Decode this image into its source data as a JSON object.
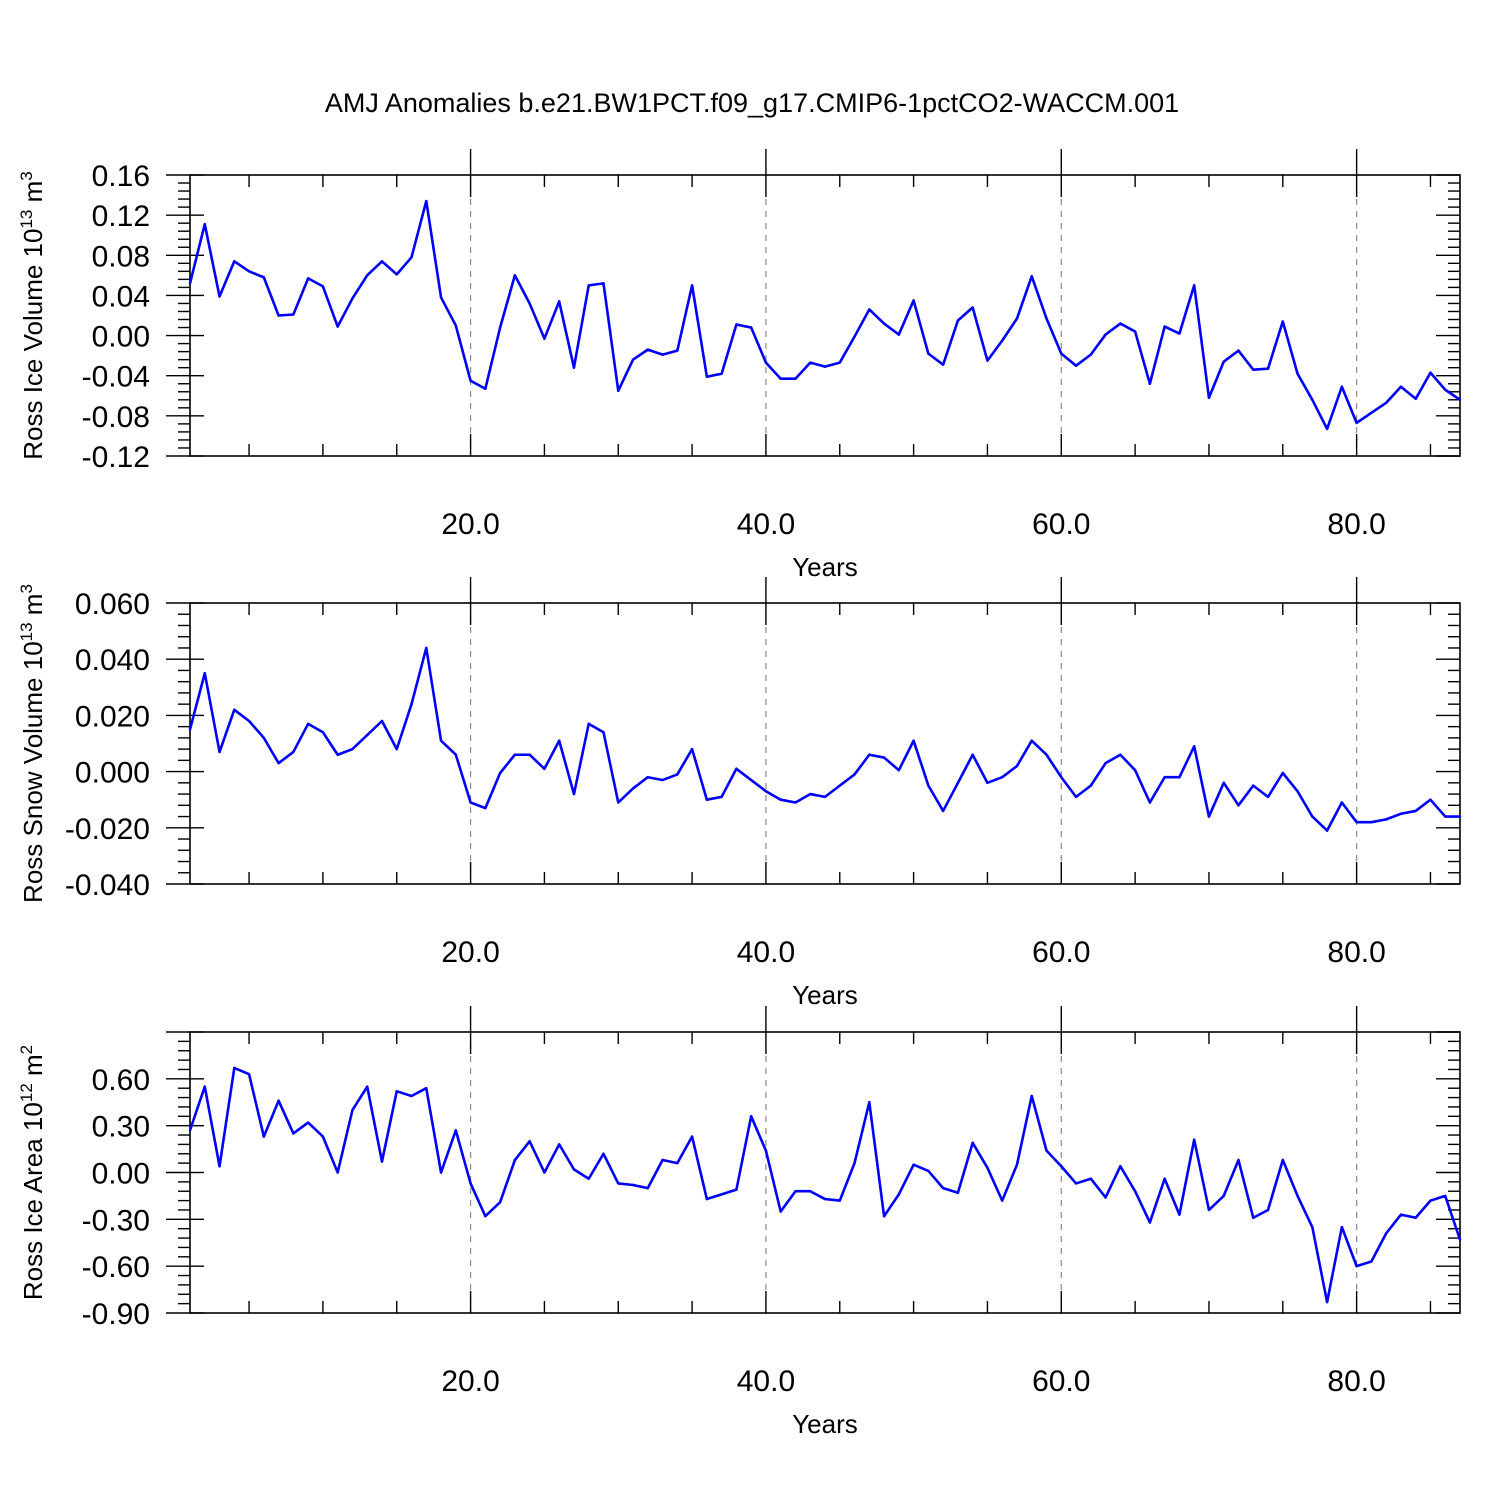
{
  "title": "AMJ Anomalies b.e21.BW1PCT.f09_g17.CMIP6-1pctCO2-WACCM.001",
  "line_color": "#0000ff",
  "chart_data": [
    {
      "type": "line",
      "ylabel": "Ross Ice Volume 10",
      "ylabel_exp": "13",
      "ylabel_unit": " m",
      "ylabel_unit_exp": "3",
      "xlabel": "Years",
      "xlim": [
        1,
        87
      ],
      "ylim": [
        -0.12,
        0.16
      ],
      "yticks": [
        -0.12,
        -0.08,
        -0.04,
        0.0,
        0.04,
        0.08,
        0.12,
        0.16
      ],
      "ytick_labels": [
        "-0.12",
        "-0.08",
        "-0.04",
        "0.00",
        "0.04",
        "0.08",
        "0.12",
        "0.16"
      ],
      "xticks": [
        20,
        40,
        60,
        80
      ],
      "xtick_labels": [
        "20.0",
        "40.0",
        "60.0",
        "80.0"
      ],
      "grid_x": true,
      "series": [
        {
          "x": [
            1,
            2,
            3,
            4,
            5,
            6,
            7,
            8,
            9,
            10,
            11,
            12,
            13,
            14,
            15,
            16,
            17,
            18,
            19,
            20,
            21,
            22,
            23,
            24,
            25,
            26,
            27,
            28,
            29,
            30,
            31,
            32,
            33,
            34,
            35,
            36,
            37,
            38,
            39,
            40,
            41,
            42,
            43,
            44,
            45,
            46,
            47,
            48,
            49,
            50,
            51,
            52,
            53,
            54,
            55,
            56,
            57,
            58,
            59,
            60,
            61,
            62,
            63,
            64,
            65,
            66,
            67,
            68,
            69,
            70,
            71,
            72,
            73,
            74,
            75,
            76,
            77,
            78,
            79,
            80,
            81,
            82,
            83,
            84,
            85,
            86,
            87
          ],
          "values": [
            0.052,
            0.111,
            0.039,
            0.074,
            0.064,
            0.058,
            0.02,
            0.021,
            0.057,
            0.049,
            0.009,
            0.037,
            0.06,
            0.074,
            0.061,
            0.078,
            0.134,
            0.038,
            0.01,
            -0.045,
            -0.053,
            0.008,
            0.06,
            0.032,
            -0.003,
            0.034,
            -0.032,
            0.05,
            0.052,
            -0.055,
            -0.024,
            -0.014,
            -0.019,
            -0.015,
            0.05,
            -0.041,
            -0.038,
            0.011,
            0.008,
            -0.027,
            -0.043,
            -0.043,
            -0.027,
            -0.031,
            -0.027,
            -0.001,
            0.026,
            0.012,
            0.001,
            0.035,
            -0.018,
            -0.029,
            0.015,
            0.028,
            -0.025,
            -0.005,
            0.017,
            0.059,
            0.017,
            -0.018,
            -0.03,
            -0.019,
            0.001,
            0.012,
            0.004,
            -0.048,
            0.009,
            0.002,
            0.05,
            -0.062,
            -0.026,
            -0.015,
            -0.034,
            -0.033,
            0.014,
            -0.038,
            -0.064,
            -0.093,
            -0.051,
            -0.087,
            -0.077,
            -0.067,
            -0.051,
            -0.063,
            -0.037,
            -0.054,
            -0.064
          ]
        }
      ]
    },
    {
      "type": "line",
      "ylabel": "Ross Snow Volume 10",
      "ylabel_exp": "13",
      "ylabel_unit": " m",
      "ylabel_unit_exp": "3",
      "xlabel": "Years",
      "xlim": [
        1,
        87
      ],
      "ylim": [
        -0.04,
        0.06
      ],
      "yticks": [
        -0.04,
        -0.02,
        0.0,
        0.02,
        0.04,
        0.06
      ],
      "ytick_labels": [
        "-0.040",
        "-0.020",
        "0.000",
        "0.020",
        "0.040",
        "0.060"
      ],
      "xticks": [
        20,
        40,
        60,
        80
      ],
      "xtick_labels": [
        "20.0",
        "40.0",
        "60.0",
        "80.0"
      ],
      "grid_x": true,
      "series": [
        {
          "x": [
            1,
            2,
            3,
            4,
            5,
            6,
            7,
            8,
            9,
            10,
            11,
            12,
            13,
            14,
            15,
            16,
            17,
            18,
            19,
            20,
            21,
            22,
            23,
            24,
            25,
            26,
            27,
            28,
            29,
            30,
            31,
            32,
            33,
            34,
            35,
            36,
            37,
            38,
            39,
            40,
            41,
            42,
            43,
            44,
            45,
            46,
            47,
            48,
            49,
            50,
            51,
            52,
            53,
            54,
            55,
            56,
            57,
            58,
            59,
            60,
            61,
            62,
            63,
            64,
            65,
            66,
            67,
            68,
            69,
            70,
            71,
            72,
            73,
            74,
            75,
            76,
            77,
            78,
            79,
            80,
            81,
            82,
            83,
            84,
            85,
            86,
            87
          ],
          "values": [
            0.015,
            0.035,
            0.007,
            0.022,
            0.018,
            0.012,
            0.003,
            0.007,
            0.017,
            0.014,
            0.006,
            0.008,
            0.013,
            0.018,
            0.008,
            0.024,
            0.044,
            0.011,
            0.006,
            -0.011,
            -0.013,
            -0.0005,
            0.006,
            0.006,
            0.001,
            0.011,
            -0.008,
            0.017,
            0.014,
            -0.011,
            -0.006,
            -0.002,
            -0.003,
            -0.001,
            0.008,
            -0.01,
            -0.009,
            0.001,
            -0.003,
            -0.007,
            -0.01,
            -0.011,
            -0.008,
            -0.009,
            -0.005,
            -0.001,
            0.006,
            0.005,
            0.0005,
            0.011,
            -0.005,
            -0.014,
            -0.004,
            0.006,
            -0.004,
            -0.002,
            0.002,
            0.011,
            0.006,
            -0.002,
            -0.009,
            -0.005,
            0.003,
            0.006,
            0.0005,
            -0.011,
            -0.002,
            -0.002,
            0.009,
            -0.016,
            -0.004,
            -0.012,
            -0.005,
            -0.009,
            -0.0005,
            -0.007,
            -0.016,
            -0.021,
            -0.011,
            -0.018,
            -0.018,
            -0.017,
            -0.015,
            -0.014,
            -0.01,
            -0.016,
            -0.016
          ]
        }
      ]
    },
    {
      "type": "line",
      "ylabel": "Ross Ice Area 10",
      "ylabel_exp": "12",
      "ylabel_unit": " m",
      "ylabel_unit_exp": "2",
      "xlabel": "Years",
      "xlim": [
        1,
        87
      ],
      "ylim": [
        -0.9,
        0.9
      ],
      "yticks": [
        -0.9,
        -0.6,
        -0.3,
        0.0,
        0.3,
        0.6
      ],
      "ytick_labels": [
        "-0.90",
        "-0.60",
        "-0.30",
        "0.00",
        "0.30",
        "0.60"
      ],
      "xticks": [
        20,
        40,
        60,
        80
      ],
      "xtick_labels": [
        "20.0",
        "40.0",
        "60.0",
        "80.0"
      ],
      "grid_x": true,
      "series": [
        {
          "x": [
            1,
            2,
            3,
            4,
            5,
            6,
            7,
            8,
            9,
            10,
            11,
            12,
            13,
            14,
            15,
            16,
            17,
            18,
            19,
            20,
            21,
            22,
            23,
            24,
            25,
            26,
            27,
            28,
            29,
            30,
            31,
            32,
            33,
            34,
            35,
            36,
            37,
            38,
            39,
            40,
            41,
            42,
            43,
            44,
            45,
            46,
            47,
            48,
            49,
            50,
            51,
            52,
            53,
            54,
            55,
            56,
            57,
            58,
            59,
            60,
            61,
            62,
            63,
            64,
            65,
            66,
            67,
            68,
            69,
            70,
            71,
            72,
            73,
            74,
            75,
            76,
            77,
            78,
            79,
            80,
            81,
            82,
            83,
            84,
            85,
            86,
            87
          ],
          "values": [
            0.27,
            0.55,
            0.04,
            0.67,
            0.63,
            0.23,
            0.46,
            0.25,
            0.32,
            0.23,
            0.0,
            0.4,
            0.55,
            0.07,
            0.52,
            0.49,
            0.54,
            0.0,
            0.27,
            -0.07,
            -0.28,
            -0.19,
            0.08,
            0.2,
            0.0,
            0.18,
            0.02,
            -0.04,
            0.12,
            -0.07,
            -0.08,
            -0.1,
            0.08,
            0.06,
            0.23,
            -0.17,
            -0.14,
            -0.11,
            0.36,
            0.14,
            -0.25,
            -0.12,
            -0.12,
            -0.17,
            -0.18,
            0.06,
            0.45,
            -0.28,
            -0.14,
            0.05,
            0.01,
            -0.1,
            -0.13,
            0.19,
            0.03,
            -0.18,
            0.05,
            0.49,
            0.14,
            0.04,
            -0.07,
            -0.04,
            -0.16,
            0.04,
            -0.12,
            -0.32,
            -0.04,
            -0.27,
            0.21,
            -0.24,
            -0.15,
            0.08,
            -0.29,
            -0.24,
            0.08,
            -0.15,
            -0.35,
            -0.83,
            -0.35,
            -0.6,
            -0.57,
            -0.39,
            -0.27,
            -0.29,
            -0.18,
            -0.15,
            -0.43
          ]
        }
      ]
    }
  ]
}
